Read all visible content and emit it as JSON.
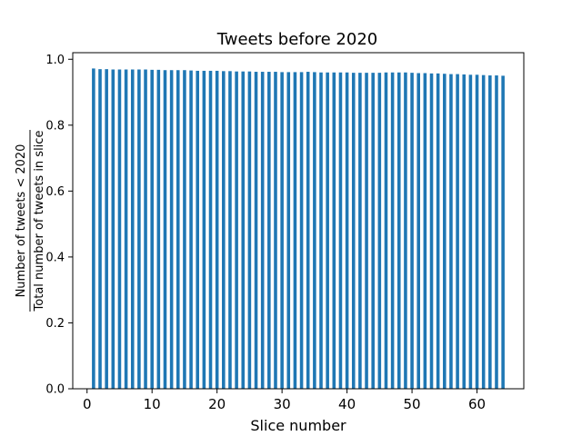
{
  "chart_data": {
    "type": "bar",
    "title": "Tweets before 2020",
    "xlabel": "Slice number",
    "ylabel_numerator": "Number of tweets < 2020",
    "ylabel_denominator": "Total number of tweets in slice",
    "xlim": [
      -2.2,
      67.2
    ],
    "ylim": [
      0,
      1.02
    ],
    "xticks": [
      0,
      10,
      20,
      30,
      40,
      50,
      60
    ],
    "yticks": [
      0.0,
      0.2,
      0.4,
      0.6,
      0.8,
      1.0
    ],
    "ytick_labels": [
      "0.0",
      "0.2",
      "0.4",
      "0.6",
      "0.8",
      "1.0"
    ],
    "bar_color": "#1f77b4",
    "x": [
      1,
      2,
      3,
      4,
      5,
      6,
      7,
      8,
      9,
      10,
      11,
      12,
      13,
      14,
      15,
      16,
      17,
      18,
      19,
      20,
      21,
      22,
      23,
      24,
      25,
      26,
      27,
      28,
      29,
      30,
      31,
      32,
      33,
      34,
      35,
      36,
      37,
      38,
      39,
      40,
      41,
      42,
      43,
      44,
      45,
      46,
      47,
      48,
      49,
      50,
      51,
      52,
      53,
      54,
      55,
      56,
      57,
      58,
      59,
      60,
      61,
      62,
      63,
      64
    ],
    "values": [
      0.972,
      0.97,
      0.97,
      0.969,
      0.969,
      0.969,
      0.969,
      0.969,
      0.969,
      0.968,
      0.968,
      0.967,
      0.967,
      0.967,
      0.967,
      0.966,
      0.965,
      0.965,
      0.965,
      0.965,
      0.964,
      0.964,
      0.963,
      0.963,
      0.963,
      0.962,
      0.962,
      0.962,
      0.962,
      0.961,
      0.961,
      0.961,
      0.961,
      0.962,
      0.961,
      0.96,
      0.96,
      0.96,
      0.96,
      0.96,
      0.959,
      0.959,
      0.959,
      0.959,
      0.959,
      0.96,
      0.96,
      0.96,
      0.96,
      0.959,
      0.958,
      0.958,
      0.957,
      0.957,
      0.956,
      0.955,
      0.955,
      0.954,
      0.953,
      0.953,
      0.952,
      0.951,
      0.951,
      0.95
    ]
  }
}
